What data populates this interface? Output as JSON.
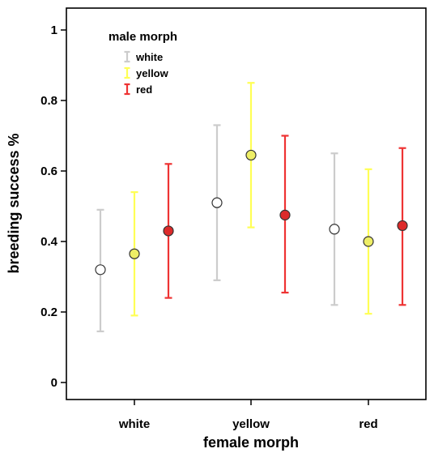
{
  "chart_data": {
    "type": "scatter",
    "xlabel": "female morph",
    "ylabel": "breeding success %",
    "categories": [
      "white",
      "yellow",
      "red"
    ],
    "ylim": [
      0,
      1
    ],
    "yticks": [
      0,
      0.2,
      0.4,
      0.6,
      0.8,
      1
    ],
    "ytick_labels": [
      "0",
      "0.2",
      "0.4",
      "0.6",
      "0.8",
      "1"
    ],
    "grid": false,
    "legend": {
      "title": "male morph",
      "position": "top-left"
    },
    "series": [
      {
        "name": "white",
        "color": "#cccccc",
        "marker_fill": "#ffffff",
        "values": [
          0.32,
          0.51,
          0.435
        ],
        "lower": [
          0.145,
          0.29,
          0.22
        ],
        "upper": [
          0.49,
          0.73,
          0.65
        ]
      },
      {
        "name": "yellow",
        "color": "#ffff55",
        "marker_fill": "#eeee66",
        "values": [
          0.365,
          0.645,
          0.4
        ],
        "lower": [
          0.19,
          0.44,
          0.195
        ],
        "upper": [
          0.54,
          0.85,
          0.605
        ]
      },
      {
        "name": "red",
        "color": "#ee3333",
        "marker_fill": "#dd2a2a",
        "values": [
          0.43,
          0.475,
          0.445
        ],
        "lower": [
          0.24,
          0.255,
          0.22
        ],
        "upper": [
          0.62,
          0.7,
          0.665
        ]
      }
    ]
  }
}
